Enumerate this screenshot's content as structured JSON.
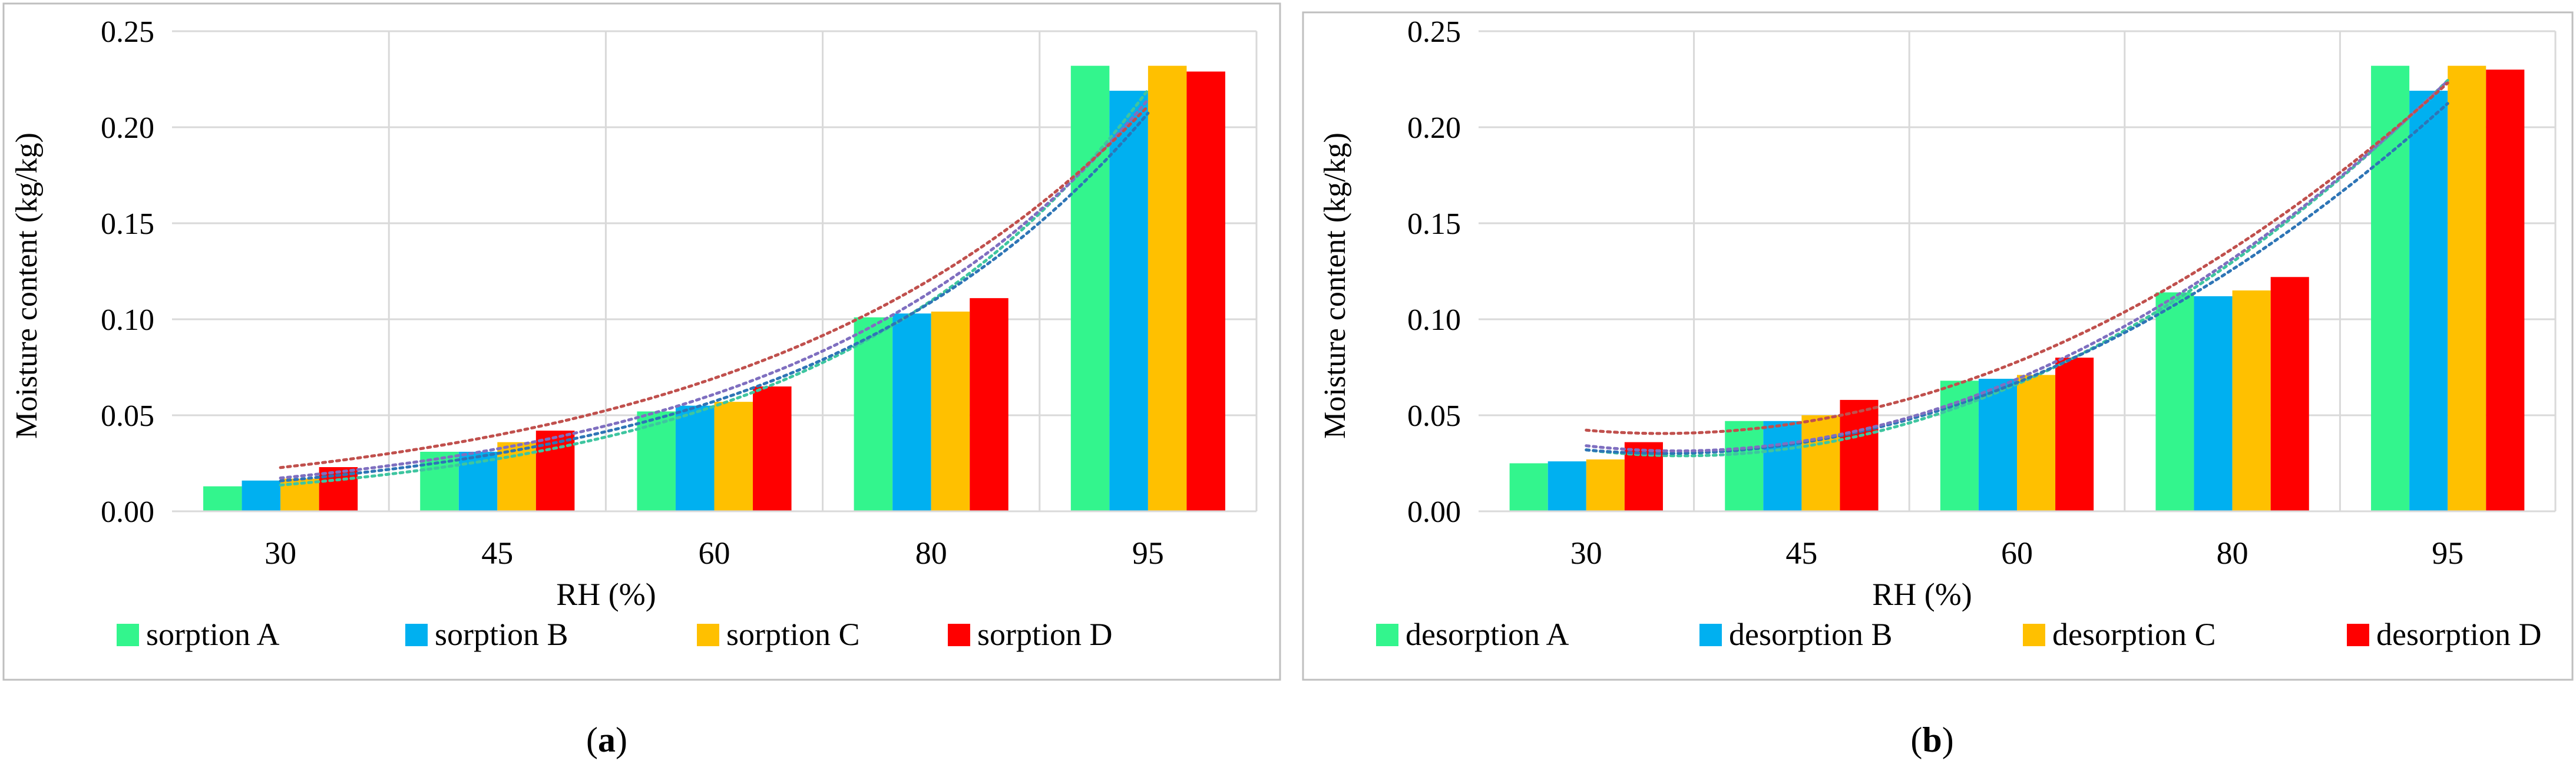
{
  "colors": {
    "A": "#33f58d",
    "B": "#00b0f0",
    "C": "#ffc000",
    "D": "#ff0000",
    "trend_A": "#3ec5a0",
    "trend_B": "#2e75b6",
    "trend_C": "#7f6fc0",
    "trend_D": "#c0504d",
    "grid": "#d9d9d9",
    "border": "#bfbfbf"
  },
  "chart_data": [
    {
      "type": "bar",
      "panel_label": "a",
      "title": "",
      "xlabel": "RH (%)",
      "ylabel": "Moisture content (kg/kg)",
      "ylim": [
        0,
        0.25
      ],
      "yticks": [
        "0.00",
        "0.05",
        "0.10",
        "0.15",
        "0.20",
        "0.25"
      ],
      "categories": [
        "30",
        "45",
        "60",
        "80",
        "95"
      ],
      "grid": true,
      "legend_position": "bottom",
      "trendlines": "exponential, dotted",
      "series": [
        {
          "key": "A",
          "name": "sorption A",
          "values": [
            0.013,
            0.031,
            0.052,
            0.101,
            0.232
          ]
        },
        {
          "key": "B",
          "name": "sorption B",
          "values": [
            0.016,
            0.031,
            0.055,
            0.103,
            0.219
          ]
        },
        {
          "key": "C",
          "name": "sorption C",
          "values": [
            0.017,
            0.036,
            0.057,
            0.104,
            0.232
          ]
        },
        {
          "key": "D",
          "name": "sorption D",
          "values": [
            0.023,
            0.042,
            0.065,
            0.111,
            0.229
          ]
        }
      ]
    },
    {
      "type": "bar",
      "panel_label": "b",
      "title": "",
      "xlabel": "RH (%)",
      "ylabel": "Moisture content (kg/kg)",
      "ylim": [
        0,
        0.25
      ],
      "yticks": [
        "0.00",
        "0.05",
        "0.10",
        "0.15",
        "0.20",
        "0.25"
      ],
      "categories": [
        "30",
        "45",
        "60",
        "80",
        "95"
      ],
      "grid": true,
      "legend_position": "bottom",
      "trendlines": "polynomial, dotted",
      "series": [
        {
          "key": "A",
          "name": "desorption A",
          "values": [
            0.025,
            0.047,
            0.068,
            0.114,
            0.232
          ]
        },
        {
          "key": "B",
          "name": "desorption B",
          "values": [
            0.026,
            0.047,
            0.069,
            0.112,
            0.219
          ]
        },
        {
          "key": "C",
          "name": "desorption C",
          "values": [
            0.027,
            0.05,
            0.071,
            0.115,
            0.232
          ]
        },
        {
          "key": "D",
          "name": "desorption D",
          "values": [
            0.036,
            0.058,
            0.08,
            0.122,
            0.23
          ]
        }
      ]
    }
  ]
}
